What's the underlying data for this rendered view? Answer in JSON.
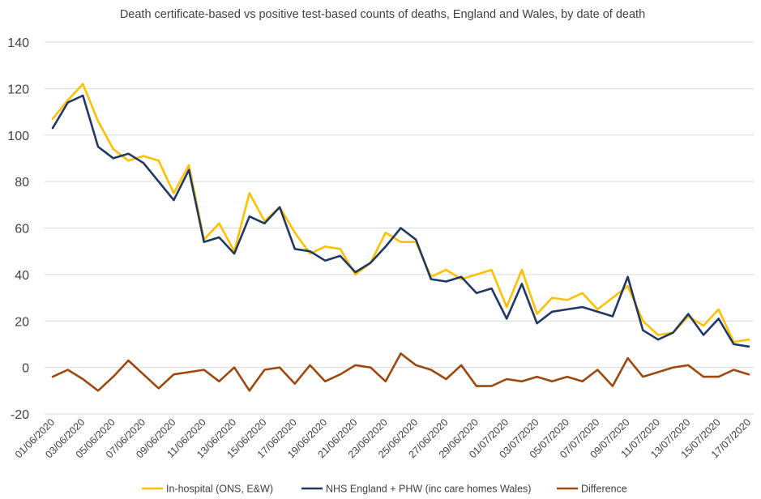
{
  "chart_data": {
    "type": "line",
    "title": "Death certificate-based vs positive test-based counts of deaths, England and Wales, by date of death",
    "xlabel": "",
    "ylabel": "",
    "ylim": [
      -20,
      140
    ],
    "y_ticks": [
      "-20",
      "0",
      "20",
      "40",
      "60",
      "80",
      "100",
      "120",
      "140"
    ],
    "grid": true,
    "legend_position": "bottom",
    "x": [
      "01/06/2020",
      "02/06/2020",
      "03/06/2020",
      "04/06/2020",
      "05/06/2020",
      "06/06/2020",
      "07/06/2020",
      "08/06/2020",
      "09/06/2020",
      "10/06/2020",
      "11/06/2020",
      "12/06/2020",
      "13/06/2020",
      "14/06/2020",
      "15/06/2020",
      "16/06/2020",
      "17/06/2020",
      "18/06/2020",
      "19/06/2020",
      "20/06/2020",
      "21/06/2020",
      "22/06/2020",
      "23/06/2020",
      "24/06/2020",
      "25/06/2020",
      "26/06/2020",
      "27/06/2020",
      "28/06/2020",
      "29/06/2020",
      "30/06/2020",
      "01/07/2020",
      "02/07/2020",
      "03/07/2020",
      "04/07/2020",
      "05/07/2020",
      "06/07/2020",
      "07/07/2020",
      "08/07/2020",
      "09/07/2020",
      "10/07/2020",
      "11/07/2020",
      "12/07/2020",
      "13/07/2020",
      "14/07/2020",
      "15/07/2020",
      "16/07/2020",
      "17/07/2020"
    ],
    "x_tick_labels": [
      "01/06/2020",
      "03/06/2020",
      "05/06/2020",
      "07/06/2020",
      "09/06/2020",
      "11/06/2020",
      "13/06/2020",
      "15/06/2020",
      "17/06/2020",
      "19/06/2020",
      "21/06/2020",
      "23/06/2020",
      "25/06/2020",
      "27/06/2020",
      "29/06/2020",
      "01/07/2020",
      "03/07/2020",
      "05/07/2020",
      "07/07/2020",
      "09/07/2020",
      "11/07/2020",
      "13/07/2020",
      "15/07/2020",
      "17/07/2020"
    ],
    "series": [
      {
        "name": "In-hospital (ONS, E&W)",
        "color": "#FFC000",
        "values": [
          107,
          115,
          122,
          106,
          94,
          89,
          91,
          89,
          75,
          87,
          55,
          62,
          50,
          75,
          63,
          69,
          58,
          49,
          52,
          51,
          40,
          45,
          58,
          54,
          54,
          39,
          42,
          38,
          40,
          42,
          26,
          42,
          23,
          30,
          29,
          32,
          25,
          30,
          35,
          20,
          14,
          15,
          22,
          18,
          25,
          11,
          12
        ]
      },
      {
        "name": "NHS England + PHW (inc care homes Wales)",
        "color": "#203864",
        "values": [
          103,
          114,
          117,
          95,
          90,
          92,
          88,
          80,
          72,
          85,
          54,
          56,
          49,
          65,
          62,
          69,
          51,
          50,
          46,
          48,
          41,
          45,
          52,
          60,
          55,
          38,
          37,
          39,
          32,
          34,
          21,
          36,
          19,
          24,
          25,
          26,
          24,
          22,
          39,
          16,
          12,
          15,
          23,
          14,
          21,
          10,
          9
        ]
      },
      {
        "name": "Difference",
        "color": "#9E480E",
        "values": [
          -4,
          -1,
          -5,
          -10,
          -4,
          3,
          -3,
          -9,
          -3,
          -2,
          -1,
          -6,
          0,
          -10,
          -1,
          0,
          -7,
          1,
          -6,
          -3,
          1,
          0,
          -6,
          6,
          1,
          -1,
          -5,
          1,
          -8,
          -8,
          -5,
          -6,
          -4,
          -6,
          -4,
          -6,
          -1,
          -8,
          4,
          -4,
          -2,
          0,
          1,
          -4,
          -4,
          -1,
          -3
        ]
      }
    ]
  }
}
